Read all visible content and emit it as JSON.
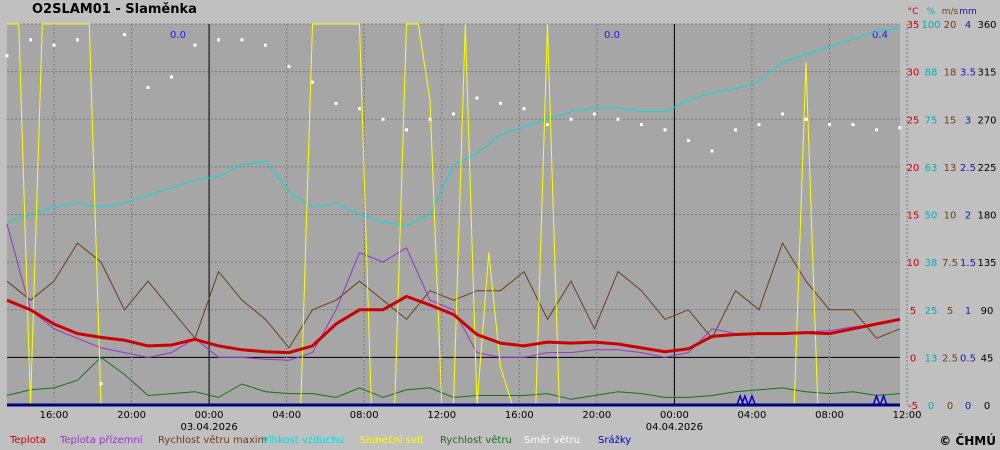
{
  "title": "O2SLAM01 - Slaměnka",
  "copyright": "© ČHMÚ",
  "chart_data": {
    "type": "line",
    "title": "O2SLAM01 - Slaměnka",
    "x_ticks": [
      {
        "label": "16:00",
        "date": ""
      },
      {
        "label": "20:00",
        "date": ""
      },
      {
        "label": "00:00",
        "date": "03.04.2026"
      },
      {
        "label": "04:00",
        "date": ""
      },
      {
        "label": "08:00",
        "date": ""
      },
      {
        "label": "12:00",
        "date": ""
      },
      {
        "label": "16:00",
        "date": ""
      },
      {
        "label": "20:00",
        "date": ""
      },
      {
        "label": "00:00",
        "date": "04.04.2026"
      },
      {
        "label": "04:00",
        "date": ""
      },
      {
        "label": "08:00",
        "date": ""
      },
      {
        "label": "12:00",
        "date": ""
      }
    ],
    "x_range_hours": [
      0,
      38
    ],
    "grid": true,
    "axes": [
      {
        "unit": "°C",
        "color": "#cc0000",
        "ticks": [
          "35",
          "30",
          "25",
          "20",
          "15",
          "10",
          "5",
          "0",
          "-5"
        ]
      },
      {
        "unit": "%",
        "color": "#00b0b0",
        "ticks": [
          "100",
          "88",
          "75",
          "63",
          "50",
          "38",
          "25",
          "13",
          "0"
        ]
      },
      {
        "unit": "m/s",
        "color": "#6b3e1a",
        "ticks": [
          "20",
          "18",
          "15",
          "13",
          "10",
          "7.5",
          "5",
          "2.5",
          "0"
        ]
      },
      {
        "unit": "mm",
        "color": "#1a1aaa",
        "ticks": [
          "4",
          "3.5",
          "3",
          "2.5",
          "2",
          "1.5",
          "1",
          "0.5",
          "0"
        ]
      },
      {
        "unit": "",
        "color": "#000000",
        "ticks": [
          "360",
          "315",
          "270",
          "225",
          "180",
          "135",
          "90",
          "45",
          "0"
        ]
      }
    ],
    "precip_daily_labels": [
      "0.0",
      "0.0",
      "0.4"
    ],
    "series": [
      {
        "name": "Teplota",
        "color": "#cc0000",
        "x": [
          0,
          1,
          2,
          3,
          4,
          5,
          6,
          7,
          8,
          9,
          10,
          11,
          12,
          13,
          14,
          15,
          16,
          17,
          18,
          19,
          20,
          21,
          22,
          23,
          24,
          25,
          26,
          27,
          28,
          29,
          30,
          31,
          32,
          33,
          34,
          35,
          36,
          37,
          38
        ],
        "y": [
          6,
          5,
          3.5,
          2.5,
          2.1,
          1.8,
          1.2,
          1.3,
          1.9,
          1.2,
          0.8,
          0.6,
          0.5,
          1.2,
          3.5,
          5,
          5,
          6.4,
          5.5,
          4.5,
          2.4,
          1.5,
          1.2,
          1.6,
          1.5,
          1.6,
          1.4,
          1,
          0.6,
          0.9,
          2.2,
          2.4,
          2.5,
          2.5,
          2.6,
          2.5,
          3,
          3.5,
          4
        ]
      },
      {
        "name": "Teplota přízemní",
        "color": "#9933cc",
        "x": [
          0,
          1,
          2,
          3,
          4,
          5,
          6,
          7,
          8,
          9,
          10,
          11,
          12,
          13,
          14,
          15,
          16,
          17,
          18,
          19,
          20,
          21,
          22,
          23,
          24,
          25,
          26,
          27,
          28,
          29,
          30,
          31,
          32,
          33,
          34,
          35,
          36,
          37,
          38
        ],
        "y": [
          14,
          5,
          3,
          2,
          1,
          0.5,
          0,
          0.5,
          2,
          0,
          0,
          -0.2,
          -0.3,
          0.5,
          5,
          11,
          10,
          11.5,
          6,
          5,
          0.5,
          0,
          0,
          0.5,
          0.5,
          0.8,
          0.8,
          0.5,
          0,
          0.5,
          3,
          2.5,
          2.5,
          2.5,
          2.7,
          2.8,
          3.2,
          3.5,
          4
        ]
      },
      {
        "name": "Rychlost větru maxim",
        "color": "#6b3e1a",
        "x": [
          0,
          1,
          2,
          3,
          4,
          5,
          6,
          7,
          8,
          9,
          10,
          11,
          12,
          13,
          14,
          15,
          16,
          17,
          18,
          19,
          20,
          21,
          22,
          23,
          24,
          25,
          26,
          27,
          28,
          29,
          30,
          31,
          32,
          33,
          34,
          35,
          36,
          37,
          38
        ],
        "y": [
          6.5,
          5.5,
          6.5,
          8.5,
          7.5,
          5,
          6.5,
          5,
          3.5,
          7,
          5.5,
          4.5,
          3,
          5,
          5.5,
          6.5,
          5.5,
          4.5,
          6,
          5.5,
          6,
          6,
          7,
          4.5,
          6.5,
          4,
          7,
          6,
          4.5,
          5,
          3.5,
          6,
          5,
          8.5,
          6.5,
          5,
          5,
          3.5,
          4
        ]
      },
      {
        "name": "Vlhkost vzduchu",
        "color": "#00dede",
        "x": [
          0,
          1,
          2,
          3,
          4,
          5,
          6,
          7,
          8,
          9,
          10,
          11,
          12,
          13,
          14,
          15,
          16,
          17,
          18,
          19,
          20,
          21,
          22,
          23,
          24,
          25,
          26,
          27,
          28,
          29,
          30,
          31,
          32,
          33,
          34,
          35,
          36,
          37,
          38
        ],
        "y": [
          48,
          50,
          52,
          53,
          52,
          53,
          55,
          57,
          59,
          60,
          63,
          64,
          56,
          52,
          53,
          50,
          48,
          47,
          50,
          63,
          66,
          71,
          73,
          75,
          77,
          78,
          78,
          77,
          77,
          80,
          82,
          83,
          85,
          90,
          92,
          94,
          96,
          98,
          99
        ]
      },
      {
        "name": "Sluneční svit",
        "color": "#ffff00",
        "x": [
          0,
          0.5,
          1,
          1.5,
          2,
          2.5,
          3,
          3.5,
          4,
          4.5,
          5,
          5.5,
          6,
          6.5,
          7,
          7.5,
          8,
          8.5,
          9,
          9.5,
          10,
          10.5,
          11,
          11.5,
          12,
          12.5,
          13,
          13.5,
          14,
          14.5,
          15,
          15.5,
          16,
          16.5,
          17,
          17.5,
          18,
          18.5,
          19,
          19.5,
          20,
          20.5,
          21,
          21.5,
          22,
          22.5,
          23,
          23.5,
          24,
          24.5,
          25,
          25.5,
          26,
          26.5,
          27,
          27.5,
          28,
          28.5,
          29,
          29.5,
          30,
          30.5,
          31,
          31.5,
          32,
          32.5,
          33,
          33.5,
          34,
          34.5,
          35,
          35.5,
          36,
          36.5,
          37,
          37.5,
          38
        ],
        "y": [
          100,
          100,
          0,
          100,
          100,
          100,
          100,
          100,
          0,
          0,
          0,
          0,
          0,
          0,
          0,
          0,
          0,
          0,
          0,
          0,
          0,
          0,
          0,
          0,
          0,
          0,
          100,
          100,
          100,
          100,
          100,
          0,
          0,
          0,
          100,
          100,
          80,
          0,
          0,
          100,
          0,
          40,
          10,
          0,
          0,
          0,
          100,
          0,
          0,
          0,
          0,
          0,
          0,
          0,
          0,
          0,
          0,
          0,
          0,
          0,
          0,
          0,
          0,
          0,
          0,
          0,
          0,
          0,
          90,
          0,
          0,
          0,
          0,
          0,
          0,
          0,
          0
        ]
      },
      {
        "name": "Rychlost větru",
        "color": "#1a6e1a",
        "x": [
          0,
          1,
          2,
          3,
          4,
          5,
          6,
          7,
          8,
          9,
          10,
          11,
          12,
          13,
          14,
          15,
          16,
          17,
          18,
          19,
          20,
          21,
          22,
          23,
          24,
          25,
          26,
          27,
          28,
          29,
          30,
          31,
          32,
          33,
          34,
          35,
          36,
          37,
          38
        ],
        "y": [
          0.5,
          0.8,
          0.9,
          1.3,
          2.5,
          1.6,
          0.5,
          0.6,
          0.7,
          0.4,
          1.1,
          0.7,
          0.6,
          0.6,
          0.4,
          0.9,
          0.4,
          0.8,
          0.9,
          0.4,
          0.5,
          0.5,
          0.5,
          0.6,
          0.3,
          0.5,
          0.7,
          0.6,
          0.4,
          0.4,
          0.5,
          0.7,
          0.8,
          0.9,
          0.7,
          0.6,
          0.7,
          0.5,
          0.6
        ]
      },
      {
        "name": "Směr větru",
        "color": "#ffffff",
        "x": [
          0,
          1,
          2,
          3,
          4,
          5,
          6,
          7,
          8,
          9,
          10,
          11,
          12,
          13,
          14,
          15,
          16,
          17,
          18,
          19,
          20,
          21,
          22,
          23,
          24,
          25,
          26,
          27,
          28,
          29,
          30,
          31,
          32,
          33,
          34,
          35,
          36,
          37,
          38
        ],
        "y": [
          330,
          345,
          340,
          345,
          20,
          350,
          300,
          310,
          340,
          345,
          345,
          340,
          320,
          305,
          285,
          280,
          270,
          260,
          270,
          275,
          290,
          285,
          280,
          265,
          270,
          275,
          270,
          265,
          260,
          250,
          240,
          260,
          265,
          275,
          270,
          265,
          265,
          260,
          262
        ]
      },
      {
        "name": "Srážky",
        "color": "#0000cc",
        "x": [
          31.2,
          31.4,
          31.7,
          37.0,
          37.3
        ],
        "y": [
          0.1,
          0.1,
          0.1,
          0.1,
          0.1
        ]
      }
    ]
  }
}
